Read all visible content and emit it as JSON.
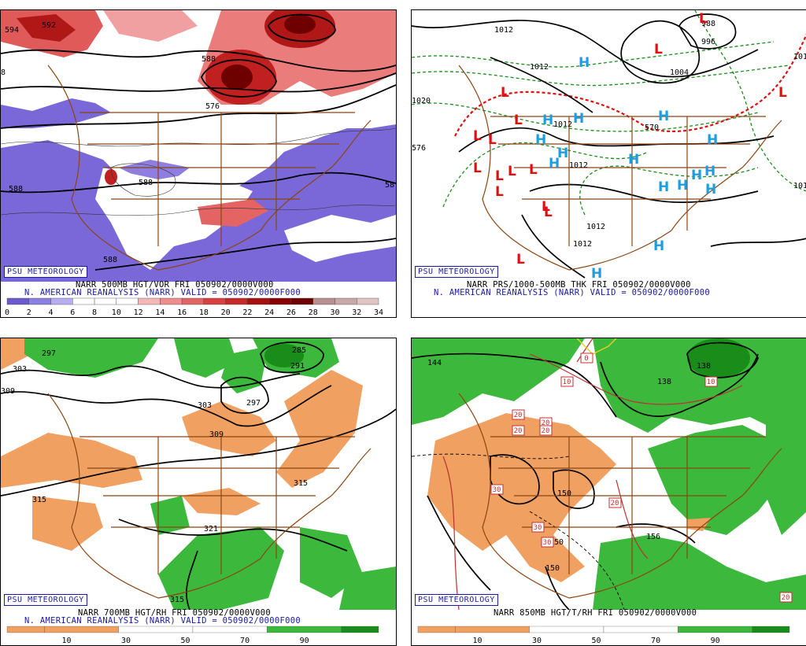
{
  "panels": [
    {
      "id": "p500",
      "credit": "PSU METEOROLOGY",
      "caption1": "NARR 500MB HGT/VOR FRI 050902/0000V000",
      "caption2": "N. AMERICAN REANALYSIS (NARR) VALID = 050902/0000F000",
      "colorbar": {
        "ticks": [
          "0",
          "2",
          "4",
          "6",
          "8",
          "10",
          "12",
          "14",
          "16",
          "18",
          "20",
          "22",
          "24",
          "26",
          "28",
          "30",
          "32",
          "34"
        ],
        "colors": [
          "#6a5acd",
          "#8b7fe0",
          "#b6aef0",
          "#ffffff",
          "#ffffff",
          "#ffffff",
          "#f4b6b6",
          "#ee8d8d",
          "#e46464",
          "#d94040",
          "#c82828",
          "#a81010",
          "#8b0000",
          "#6e0000",
          "#b89090",
          "#c8a8a8",
          "#e0c4c4"
        ]
      },
      "contour_labels": [
        "594",
        "592",
        "588",
        "582",
        "576",
        "588",
        "588",
        "588",
        "58",
        "8"
      ]
    },
    {
      "id": "pprs",
      "credit": "PSU METEOROLOGY",
      "caption1": "NARR PRS/1000-500MB THK FRI 050902/0000V000",
      "caption2": "N. AMERICAN REANALYSIS (NARR) VALID = 050902/0000F000",
      "contour_labels": [
        "1012",
        "1012",
        "996",
        "988",
        "1004",
        "1012",
        "1012",
        "1012",
        "1012",
        "1012",
        "1020",
        "576",
        "570",
        "101",
        "101",
        "1012"
      ],
      "high_low": {
        "H_color": "#1e9ee0",
        "L_color": "#e01010"
      }
    },
    {
      "id": "p700",
      "credit": "PSU METEOROLOGY",
      "caption1": "NARR 700MB HGT/RH FRI 050902/0000V000",
      "caption2": "N. AMERICAN REANALYSIS (NARR) VALID = 050902/0000F000",
      "colorbar": {
        "ticks": [
          "10",
          "30",
          "50",
          "70",
          "90"
        ],
        "colors": [
          "#f0a060",
          "#ffffff",
          "#ffffff",
          "#3cb83c",
          "#1a8c1a"
        ]
      },
      "contour_labels": [
        "297",
        "303",
        "309",
        "285",
        "291",
        "297",
        "303",
        "309",
        "315",
        "315",
        "321",
        "315"
      ]
    },
    {
      "id": "p850",
      "credit": "PSU METEOROLOGY",
      "caption1": "NARR 850MB HGT/T/RH FRI 050902/0000V000",
      "colorbar": {
        "ticks": [
          "10",
          "30",
          "50",
          "70",
          "90"
        ],
        "colors": [
          "#f0a060",
          "#ffffff",
          "#ffffff",
          "#3cb83c",
          "#1a8c1a"
        ]
      },
      "contour_labels": [
        "144",
        "138",
        "138",
        "150",
        "150",
        "156",
        "150"
      ],
      "temp_boxes": [
        "0",
        "10",
        "10",
        "20",
        "20",
        "20",
        "20",
        "30",
        "30",
        "30",
        "20",
        "20"
      ]
    }
  ]
}
